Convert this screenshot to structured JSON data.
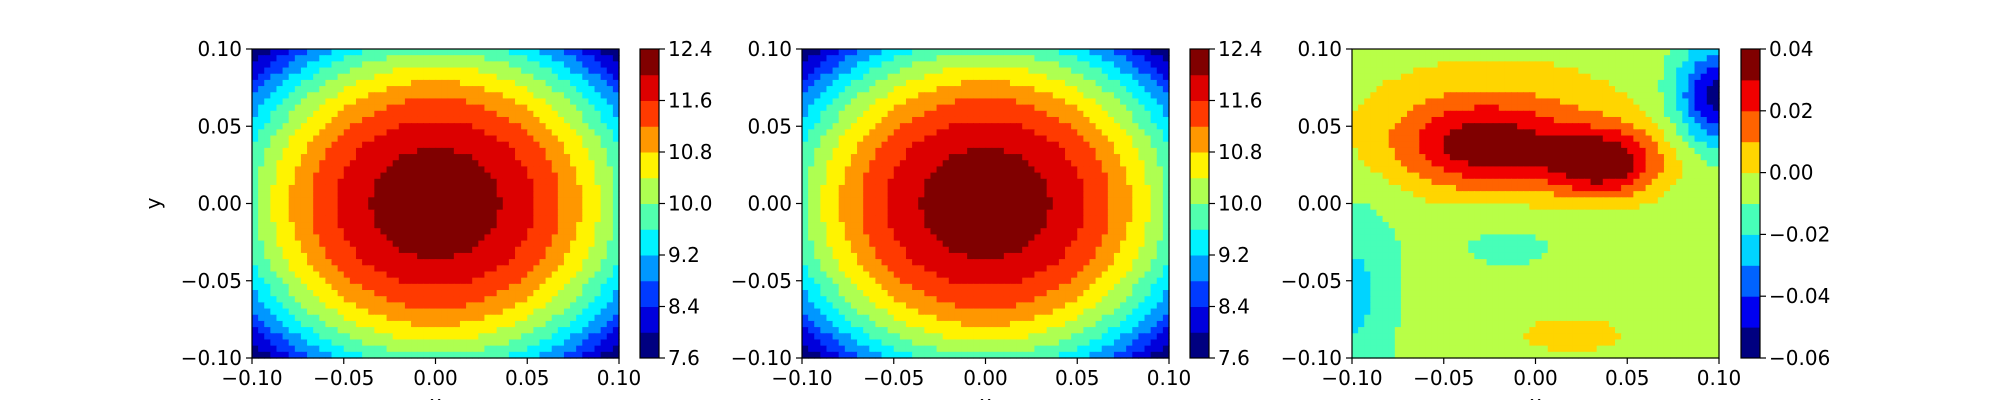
{
  "chart_data": [
    {
      "type": "contour",
      "xlabel": "x",
      "ylabel": "y",
      "xlim": [
        -0.1,
        0.1
      ],
      "ylim": [
        -0.1,
        0.1
      ],
      "xticks": [
        "−0.10",
        "−0.05",
        "0.00",
        "0.05",
        "0.10"
      ],
      "yticks": [
        "−0.10",
        "−0.05",
        "0.00",
        "0.05",
        "0.10"
      ],
      "colormap": "jet",
      "colorbar": {
        "range": [
          7.6,
          12.4
        ],
        "levels": 12,
        "ticks": [
          7.6,
          8.4,
          9.2,
          10.0,
          10.8,
          11.6,
          12.4
        ],
        "tick_labels": [
          "7.6",
          "8.4",
          "9.2",
          "10.0",
          "10.8",
          "11.6",
          "12.4"
        ]
      },
      "field": {
        "shape": "elliptical peak",
        "center": [
          0.0,
          0.0
        ],
        "peak": 12.3,
        "edge": 7.7
      }
    },
    {
      "type": "contour",
      "xlabel": "x",
      "ylabel": "",
      "xlim": [
        -0.1,
        0.1
      ],
      "ylim": [
        -0.1,
        0.1
      ],
      "xticks": [
        "−0.10",
        "−0.05",
        "0.00",
        "0.05",
        "0.10"
      ],
      "yticks": [
        "−0.10",
        "−0.05",
        "0.00",
        "0.05",
        "0.10"
      ],
      "colormap": "jet",
      "colorbar": {
        "range": [
          7.6,
          12.4
        ],
        "levels": 12,
        "ticks": [
          7.6,
          8.4,
          9.2,
          10.0,
          10.8,
          11.6,
          12.4
        ],
        "tick_labels": [
          "7.6",
          "8.4",
          "9.2",
          "10.0",
          "10.8",
          "11.6",
          "12.4"
        ]
      },
      "field": {
        "shape": "elliptical peak",
        "center": [
          0.0,
          0.0
        ],
        "peak": 12.3,
        "edge": 7.7
      }
    },
    {
      "type": "contour",
      "xlabel": "x",
      "ylabel": "",
      "xlim": [
        -0.1,
        0.1
      ],
      "ylim": [
        -0.1,
        0.1
      ],
      "xticks": [
        "−0.10",
        "−0.05",
        "0.00",
        "0.05",
        "0.10"
      ],
      "yticks": [
        "−0.10",
        "−0.05",
        "0.00",
        "0.05",
        "0.10"
      ],
      "colormap": "jet",
      "colorbar": {
        "range": [
          -0.06,
          0.04
        ],
        "levels": 10,
        "ticks": [
          -0.06,
          -0.04,
          -0.02,
          0.0,
          0.02,
          0.04
        ],
        "tick_labels": [
          "−0.06",
          "−0.04",
          "−0.02",
          "0.00",
          "0.02",
          "0.04"
        ]
      },
      "field": {
        "shape": "difference field",
        "max": 0.035,
        "min": -0.055
      }
    }
  ]
}
